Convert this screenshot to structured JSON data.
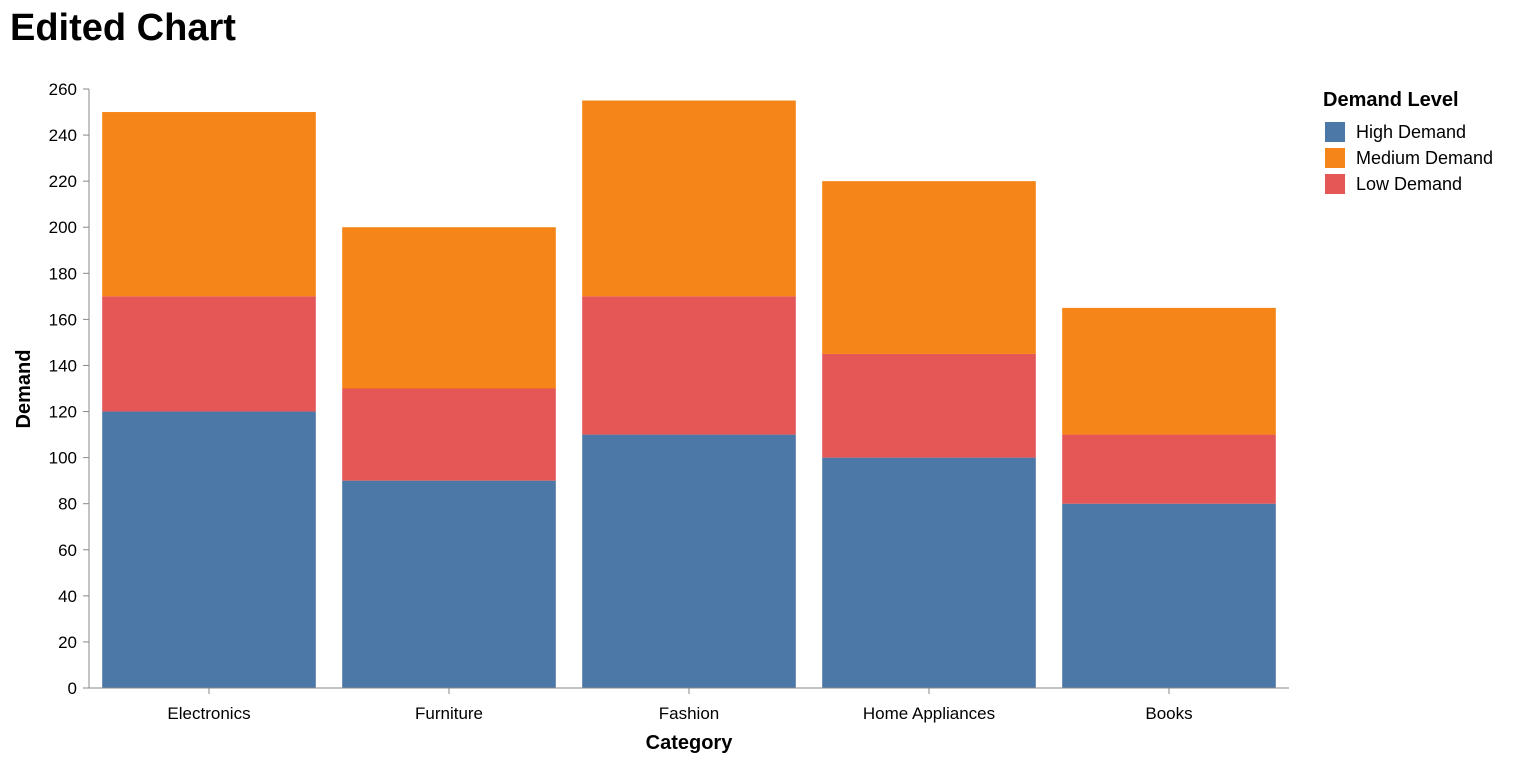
{
  "chart_data": {
    "type": "bar",
    "stacked": true,
    "title": "Edited Chart",
    "xlabel": "Category",
    "ylabel": "Demand",
    "ylim": [
      0,
      260
    ],
    "yticks": [
      0,
      20,
      40,
      60,
      80,
      100,
      120,
      140,
      160,
      180,
      200,
      220,
      240,
      260
    ],
    "grid": false,
    "legend": {
      "title": "Demand Level",
      "placement": "right",
      "entries": [
        "High Demand",
        "Medium Demand",
        "Low Demand"
      ]
    },
    "categories": [
      "Electronics",
      "Furniture",
      "Fashion",
      "Home Appliances",
      "Books"
    ],
    "series": [
      {
        "name": "High Demand",
        "color": "#4c78a8",
        "values": [
          120,
          90,
          110,
          100,
          80
        ]
      },
      {
        "name": "Low Demand",
        "color": "#e45756",
        "values": [
          50,
          40,
          60,
          45,
          30
        ]
      },
      {
        "name": "Medium Demand",
        "color": "#f58518",
        "values": [
          80,
          70,
          85,
          75,
          55
        ]
      }
    ],
    "legend_colors": {
      "High Demand": "#4c78a8",
      "Medium Demand": "#f58518",
      "Low Demand": "#e45756"
    }
  }
}
